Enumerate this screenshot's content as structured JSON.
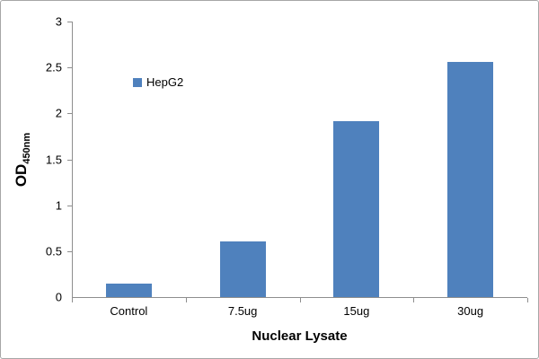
{
  "chart_data": {
    "type": "bar",
    "categories": [
      "Control",
      "7.5ug",
      "15ug",
      "30ug"
    ],
    "values": [
      0.15,
      0.61,
      1.92,
      2.56
    ],
    "series": [
      {
        "name": "HepG2",
        "values": [
          0.15,
          0.61,
          1.92,
          2.56
        ]
      }
    ],
    "title": "",
    "xlabel": "Nuclear Lysate",
    "ylabel_main": "OD",
    "ylabel_sub": "450nm",
    "ylim": [
      0,
      3
    ],
    "ytick_step": 0.5,
    "ytick_labels": [
      "0",
      "0.5",
      "1",
      "1.5",
      "2",
      "2.5",
      "3"
    ],
    "legend": {
      "label": "HepG2",
      "position": "inside-top-left"
    },
    "grid": false,
    "colors": {
      "bar": "#4f81bd",
      "axis": "#8e8e8e",
      "text": "#000000",
      "frame_border": "#a6a6a6",
      "background": "#ffffff"
    }
  }
}
